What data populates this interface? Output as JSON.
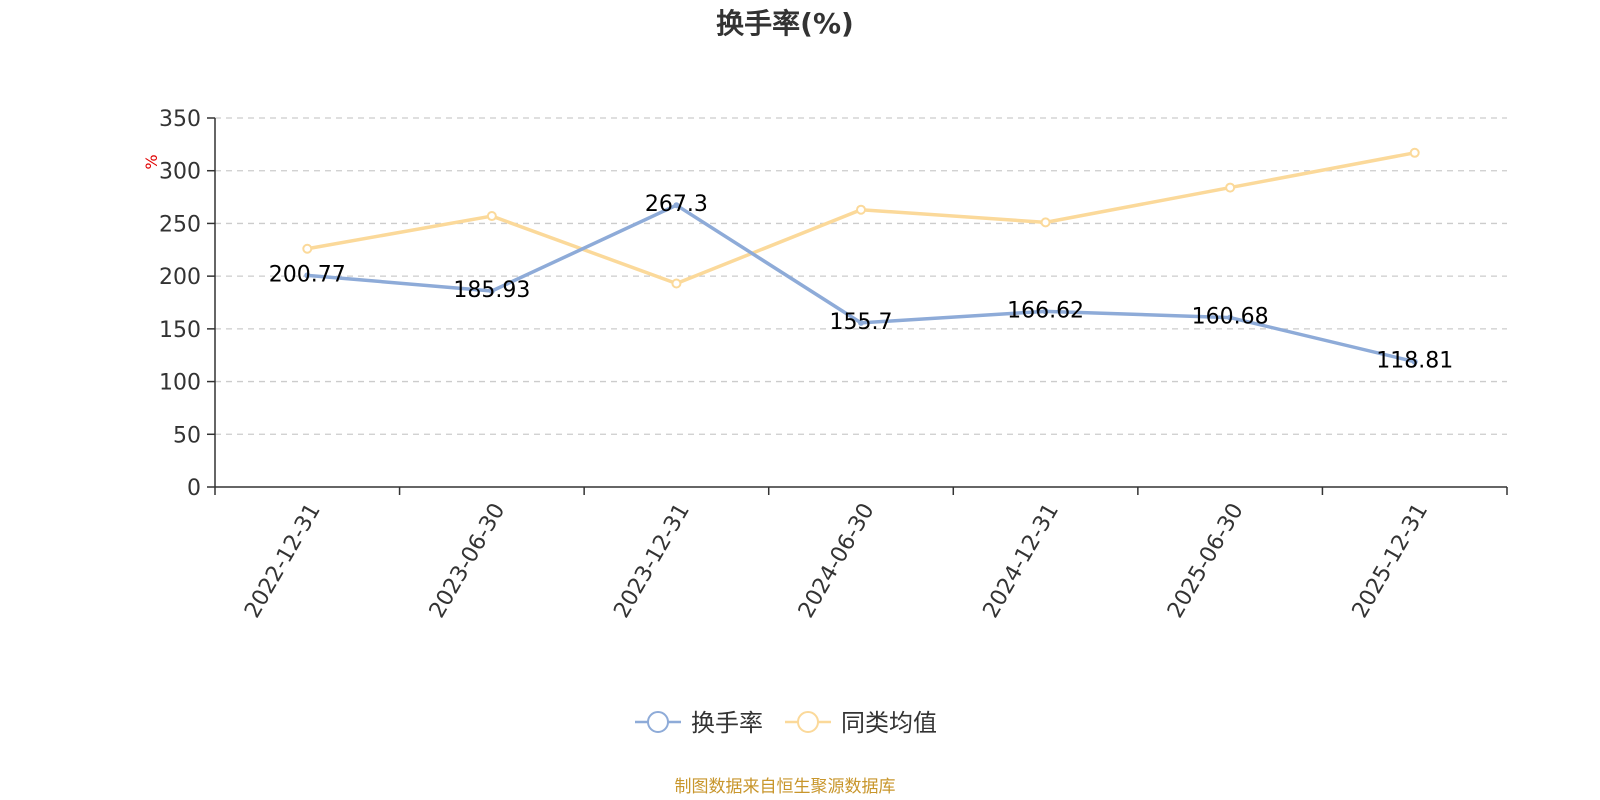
{
  "chart_data": {
    "type": "line",
    "title": "换手率(%)",
    "ylabel": "%",
    "categories": [
      "2022-12-31",
      "2023-06-30",
      "2023-12-31",
      "2024-06-30",
      "2024-12-31",
      "2025-06-30",
      "2025-12-31"
    ],
    "ylim": [
      0,
      350
    ],
    "yticks": [
      "0",
      "50",
      "100",
      "150",
      "200",
      "250",
      "300",
      "350"
    ],
    "grid": true,
    "legend_position": "bottom-center",
    "series": [
      {
        "name": "换手率",
        "color": "#8eabd8",
        "values": [
          200.77,
          185.93,
          267.3,
          155.7,
          166.62,
          160.68,
          118.81
        ],
        "labels": [
          "200.77",
          "185.93",
          "267.3",
          "155.7",
          "166.62",
          "160.68",
          "118.81"
        ]
      },
      {
        "name": "同类均值",
        "color": "#fbd99a",
        "values": [
          226,
          257,
          193,
          263,
          251,
          284,
          317
        ]
      }
    ]
  },
  "source_note": "制图数据来自恒生聚源数据库"
}
